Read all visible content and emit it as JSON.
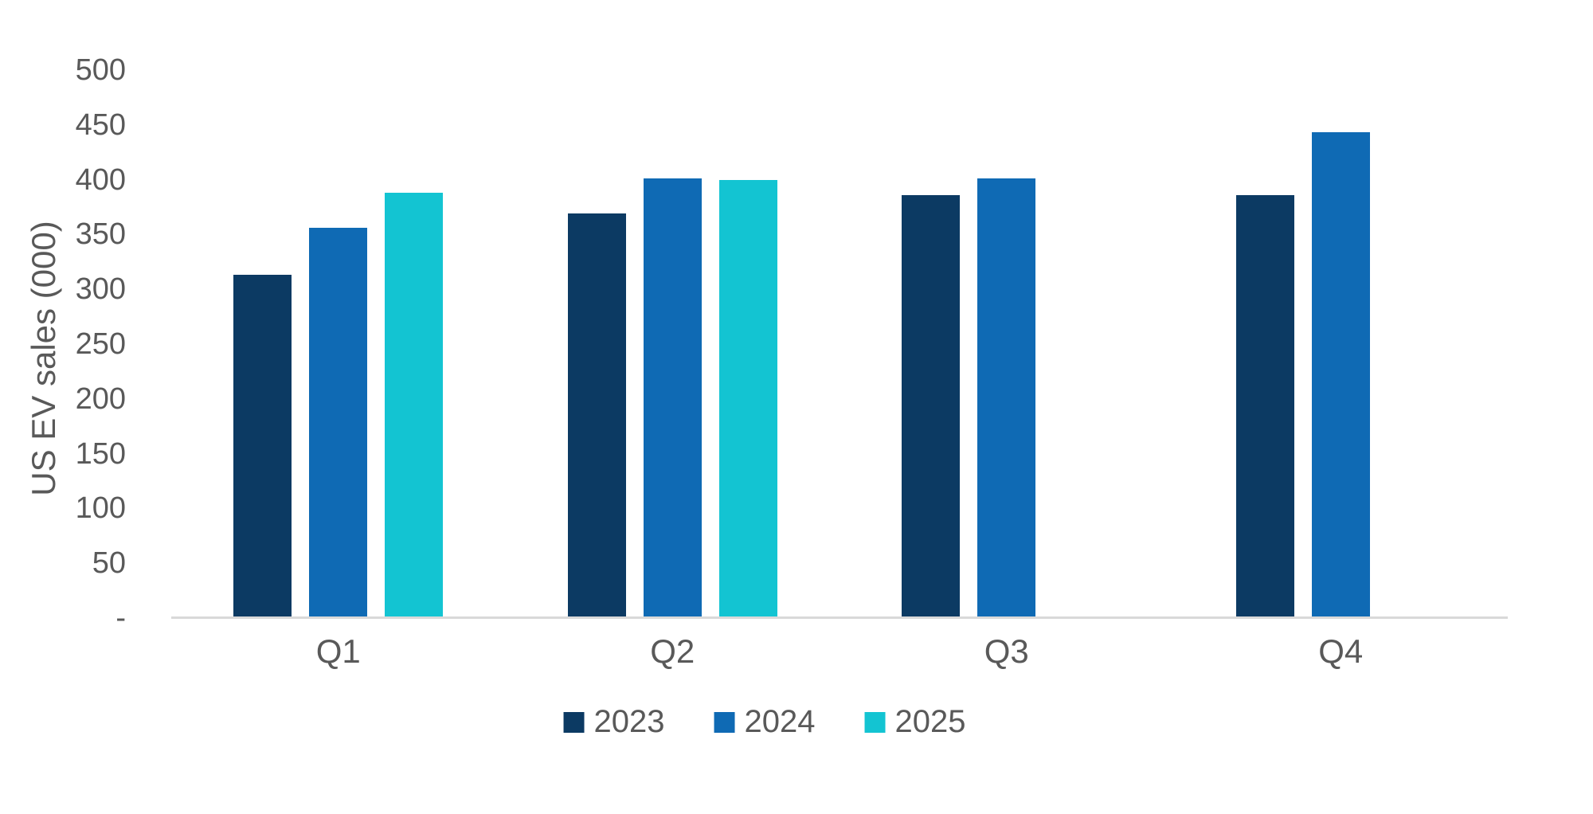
{
  "chart_data": {
    "type": "bar",
    "title": "",
    "xlabel": "",
    "ylabel": "US EV sales (000)",
    "categories": [
      "Q1",
      "Q2",
      "Q3",
      "Q4"
    ],
    "series": [
      {
        "name": "2023",
        "color": "#0C3A63",
        "values": [
          313,
          369,
          386,
          386
        ]
      },
      {
        "name": "2024",
        "color": "#0F6AB4",
        "values": [
          356,
          401,
          401,
          443
        ]
      },
      {
        "name": "2025",
        "color": "#13C4D2",
        "values": [
          388,
          400,
          null,
          null
        ]
      }
    ],
    "y_axis": {
      "min": 0,
      "max": 500,
      "step": 50,
      "tick_labels": [
        "-",
        "50",
        "100",
        "150",
        "200",
        "250",
        "300",
        "350",
        "400",
        "450",
        "500"
      ]
    },
    "legend": {
      "position": "bottom",
      "entries": [
        "2023",
        "2024",
        "2025"
      ]
    },
    "grid": false,
    "style": {
      "axis_line_color": "#D9D9D9",
      "text_color": "#595959",
      "background": "#FFFFFF"
    }
  }
}
